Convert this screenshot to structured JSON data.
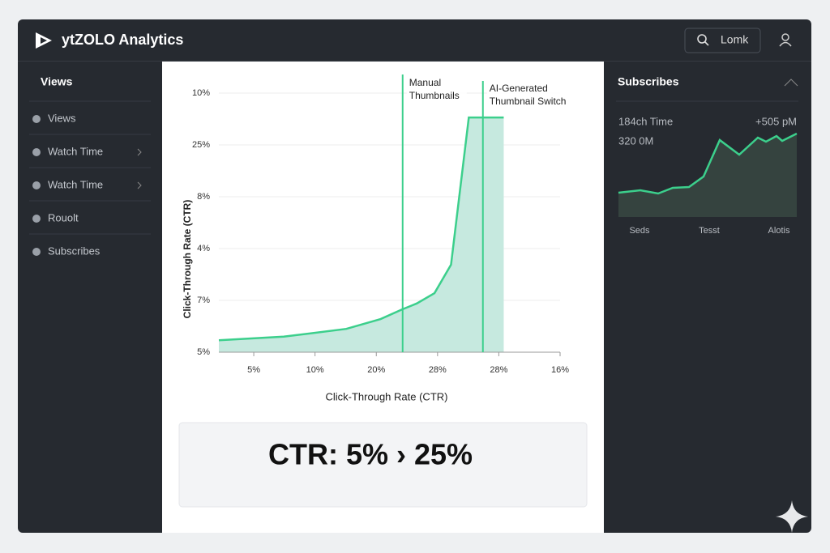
{
  "header": {
    "title": "ytZOLO Analytics",
    "search": "Lomk"
  },
  "sidebar": {
    "title": "Views",
    "items": [
      "Views",
      "Watch Time",
      "Watch Time",
      "Rouolt",
      "Subscribes"
    ]
  },
  "main_chart": {
    "type": "area",
    "xlabel": "Click-Through Rate (CTR)",
    "ylabel": "Click-Through Rate (CTR)",
    "color": "#3ccf8c",
    "xlim": [
      -0.57,
      5
    ],
    "ylim": [
      0,
      5
    ],
    "xticks": [
      {
        "value": 0,
        "label": "5%"
      },
      {
        "value": 1,
        "label": "10%"
      },
      {
        "value": 2,
        "label": "20%"
      },
      {
        "value": 3,
        "label": "28%"
      },
      {
        "value": 4,
        "label": "28%"
      },
      {
        "value": 5,
        "label": "16%"
      }
    ],
    "yticks": [
      {
        "value": 0,
        "label": "5%"
      },
      {
        "value": 1,
        "label": "7%"
      },
      {
        "value": 2,
        "label": "4%"
      },
      {
        "value": 3,
        "label": "8%"
      },
      {
        "value": 4,
        "label": "25%"
      },
      {
        "value": 5,
        "label": "10%"
      }
    ],
    "x": [
      -0.57,
      0.49,
      1.51,
      2.07,
      2.43,
      2.66,
      2.95,
      3.22,
      3.51,
      4.08
    ],
    "values": [
      0.23,
      0.3,
      0.45,
      0.64,
      0.83,
      0.94,
      1.14,
      1.69,
      4.53,
      4.53
    ],
    "annotations": [
      {
        "lines": [
          "Manual",
          "Thumbnails"
        ],
        "x": 2.43
      },
      {
        "lines": [
          "AI-Generated",
          "Thumbnail Switch"
        ],
        "x": 3.74
      }
    ]
  },
  "summary": "CTR: 5% › 25%",
  "side_chart": {
    "type": "area",
    "title": "Subscribes",
    "labels": [
      "184ch Time",
      "+505 pM",
      "320 0M"
    ],
    "categories": [
      "Seds",
      "Tesst",
      "Alotis"
    ],
    "color": "#3ccf8c",
    "xlim": [
      0,
      220
    ],
    "ylim": [
      0,
      110
    ],
    "x": [
      0,
      27,
      49,
      67,
      87,
      105,
      125,
      149,
      172,
      182,
      195,
      202,
      220
    ],
    "values": [
      30,
      33,
      29,
      36,
      37,
      50,
      95,
      77,
      98,
      93,
      100,
      94,
      103
    ]
  }
}
